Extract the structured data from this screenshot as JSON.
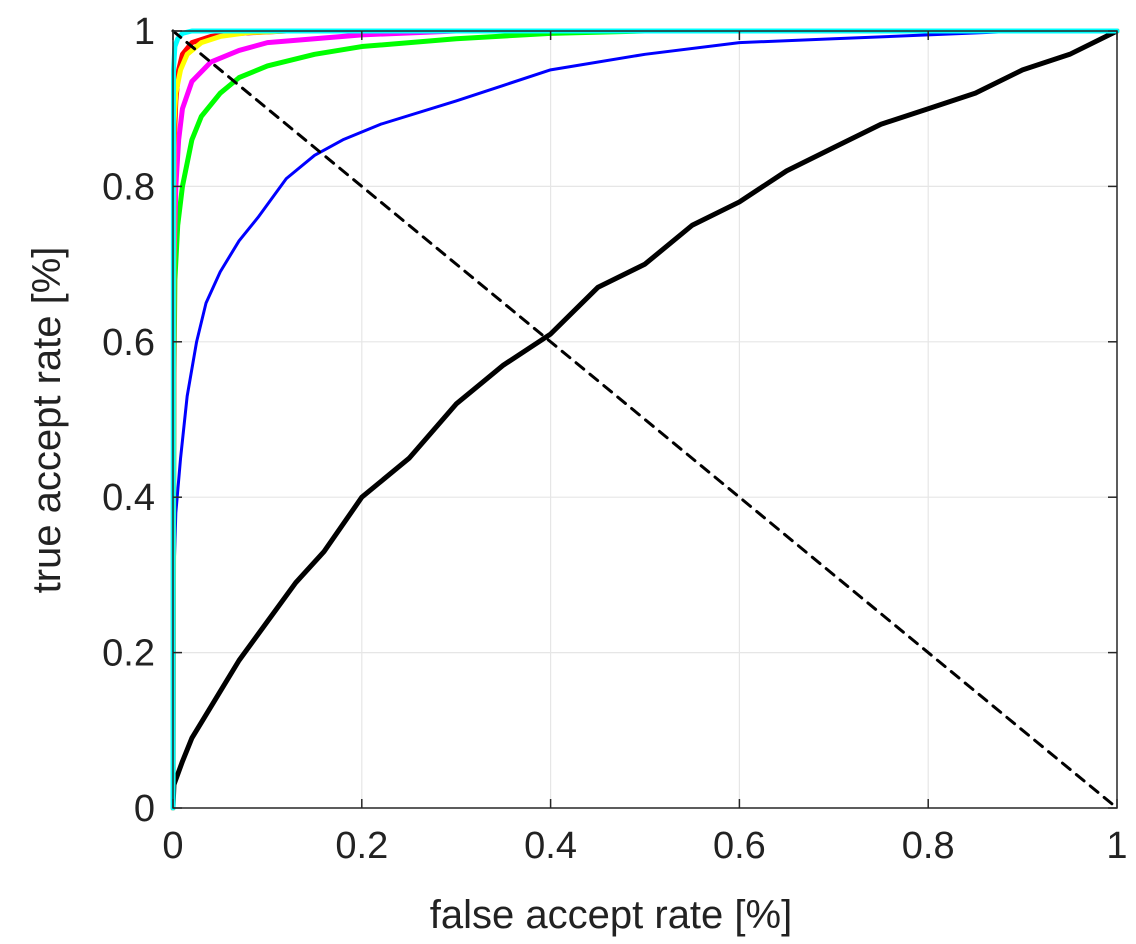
{
  "chart_data": {
    "type": "line",
    "title": "",
    "xlabel": "false accept rate [%]",
    "ylabel": "true accept rate [%]",
    "xlim": [
      0,
      1
    ],
    "ylim": [
      0,
      1
    ],
    "grid": true,
    "box": true,
    "x_ticks": [
      "0",
      "0.2",
      "0.4",
      "0.6",
      "0.8",
      "1"
    ],
    "y_ticks": [
      "0",
      "0.2",
      "0.4",
      "0.6",
      "0.8",
      "1"
    ],
    "series": [
      {
        "color": "#000000",
        "style": "solid",
        "points": [
          [
            0,
            0
          ],
          [
            0.001,
            0.03
          ],
          [
            0.01,
            0.06
          ],
          [
            0.02,
            0.09
          ],
          [
            0.03,
            0.11
          ],
          [
            0.05,
            0.15
          ],
          [
            0.07,
            0.19
          ],
          [
            0.1,
            0.24
          ],
          [
            0.13,
            0.29
          ],
          [
            0.16,
            0.33
          ],
          [
            0.2,
            0.4
          ],
          [
            0.25,
            0.45
          ],
          [
            0.3,
            0.52
          ],
          [
            0.35,
            0.57
          ],
          [
            0.4,
            0.61
          ],
          [
            0.45,
            0.67
          ],
          [
            0.5,
            0.7
          ],
          [
            0.55,
            0.75
          ],
          [
            0.6,
            0.78
          ],
          [
            0.65,
            0.82
          ],
          [
            0.7,
            0.85
          ],
          [
            0.75,
            0.88
          ],
          [
            0.8,
            0.9
          ],
          [
            0.85,
            0.92
          ],
          [
            0.9,
            0.95
          ],
          [
            0.95,
            0.97
          ],
          [
            1,
            1
          ]
        ]
      },
      {
        "color": "#0000ff",
        "style": "solid",
        "points": [
          [
            0,
            0
          ],
          [
            0.001,
            0.3
          ],
          [
            0.003,
            0.38
          ],
          [
            0.008,
            0.45
          ],
          [
            0.015,
            0.53
          ],
          [
            0.025,
            0.6
          ],
          [
            0.035,
            0.65
          ],
          [
            0.05,
            0.69
          ],
          [
            0.07,
            0.73
          ],
          [
            0.09,
            0.76
          ],
          [
            0.12,
            0.81
          ],
          [
            0.15,
            0.84
          ],
          [
            0.18,
            0.86
          ],
          [
            0.22,
            0.88
          ],
          [
            0.3,
            0.91
          ],
          [
            0.35,
            0.93
          ],
          [
            0.4,
            0.95
          ],
          [
            0.5,
            0.97
          ],
          [
            0.6,
            0.985
          ],
          [
            0.7,
            0.99
          ],
          [
            0.8,
            0.995
          ],
          [
            0.9,
            1
          ],
          [
            1,
            1
          ]
        ]
      },
      {
        "color": "#00ff00",
        "style": "solid",
        "points": [
          [
            0,
            0
          ],
          [
            0.001,
            0.55
          ],
          [
            0.002,
            0.68
          ],
          [
            0.005,
            0.75
          ],
          [
            0.01,
            0.8
          ],
          [
            0.02,
            0.86
          ],
          [
            0.03,
            0.89
          ],
          [
            0.05,
            0.92
          ],
          [
            0.07,
            0.94
          ],
          [
            0.1,
            0.955
          ],
          [
            0.15,
            0.97
          ],
          [
            0.2,
            0.98
          ],
          [
            0.3,
            0.99
          ],
          [
            0.4,
            0.997
          ],
          [
            0.5,
            1
          ],
          [
            1,
            1
          ]
        ]
      },
      {
        "color": "#ff00ff",
        "style": "solid",
        "points": [
          [
            0,
            0
          ],
          [
            0.001,
            0.7
          ],
          [
            0.003,
            0.8
          ],
          [
            0.006,
            0.86
          ],
          [
            0.01,
            0.9
          ],
          [
            0.02,
            0.935
          ],
          [
            0.04,
            0.96
          ],
          [
            0.07,
            0.975
          ],
          [
            0.1,
            0.985
          ],
          [
            0.15,
            0.99
          ],
          [
            0.2,
            0.995
          ],
          [
            0.3,
            1
          ],
          [
            1,
            1
          ]
        ]
      },
      {
        "color": "#ff0000",
        "style": "solid",
        "points": [
          [
            0,
            0
          ],
          [
            0.001,
            0.85
          ],
          [
            0.003,
            0.91
          ],
          [
            0.006,
            0.95
          ],
          [
            0.01,
            0.97
          ],
          [
            0.02,
            0.985
          ],
          [
            0.04,
            0.993
          ],
          [
            0.07,
            0.997
          ],
          [
            0.12,
            1
          ],
          [
            1,
            1
          ]
        ]
      },
      {
        "color": "#ffff00",
        "style": "solid",
        "points": [
          [
            0,
            0
          ],
          [
            0.001,
            0.88
          ],
          [
            0.003,
            0.92
          ],
          [
            0.008,
            0.95
          ],
          [
            0.015,
            0.97
          ],
          [
            0.03,
            0.985
          ],
          [
            0.05,
            0.993
          ],
          [
            0.08,
            0.998
          ],
          [
            0.12,
            1
          ],
          [
            1,
            1
          ]
        ]
      },
      {
        "color": "#00ffff",
        "style": "solid",
        "points": [
          [
            0,
            0
          ],
          [
            0.0005,
            0.95
          ],
          [
            0.002,
            0.98
          ],
          [
            0.005,
            0.99
          ],
          [
            0.01,
            0.997
          ],
          [
            0.02,
            1
          ],
          [
            1,
            1
          ]
        ]
      },
      {
        "color": "#000000",
        "style": "dashed",
        "points": [
          [
            0,
            1
          ],
          [
            1,
            0
          ]
        ]
      }
    ]
  }
}
